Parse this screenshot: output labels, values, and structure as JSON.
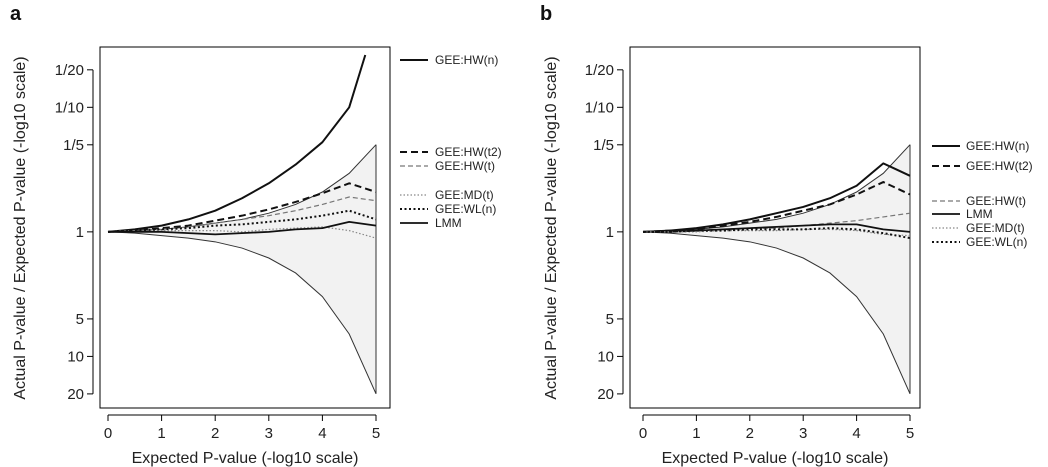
{
  "chart_data": [
    {
      "panel": "a",
      "type": "line",
      "xlabel": "Expected P-value (-log10 scale)",
      "ylabel": "Actual P-value / Expected P-value (-log10 scale)",
      "xlim": [
        0,
        5
      ],
      "ylim_log10_ratio": [
        -1.35,
        1.42
      ],
      "x_ticks": [
        0,
        1,
        2,
        3,
        4,
        5
      ],
      "y_ticks": [
        {
          "label": "1/20",
          "log10_ratio": 1.301
        },
        {
          "label": "1/10",
          "log10_ratio": 1.0
        },
        {
          "label": "1/5",
          "log10_ratio": 0.699
        },
        {
          "label": "1",
          "log10_ratio": 0
        },
        {
          "label": "5",
          "log10_ratio": -0.699
        },
        {
          "label": "10",
          "log10_ratio": -1.0
        },
        {
          "label": "20",
          "log10_ratio": -1.301
        }
      ],
      "envelope": {
        "x": [
          0,
          0.5,
          1,
          1.5,
          2,
          2.5,
          3,
          3.5,
          4,
          4.5,
          5
        ],
        "upper": [
          0,
          0.01,
          0.02,
          0.04,
          0.07,
          0.1,
          0.15,
          0.22,
          0.32,
          0.47,
          0.7
        ],
        "lower": [
          0,
          -0.01,
          -0.03,
          -0.05,
          -0.08,
          -0.13,
          -0.21,
          -0.33,
          -0.52,
          -0.82,
          -1.3
        ]
      },
      "series": [
        {
          "name": "GEE:HW(n)",
          "style": "solid-thick",
          "x": [
            0,
            0.5,
            1,
            1.5,
            2,
            2.5,
            3,
            3.5,
            4,
            4.5,
            4.8
          ],
          "values": [
            0,
            0.02,
            0.05,
            0.1,
            0.17,
            0.27,
            0.39,
            0.54,
            0.72,
            1.0,
            1.42
          ]
        },
        {
          "name": "GEE:HW(t2)",
          "style": "dashed-thick",
          "x": [
            0,
            0.5,
            1,
            1.5,
            2,
            2.5,
            3,
            3.5,
            4,
            4.5,
            5
          ],
          "values": [
            0,
            0.01,
            0.03,
            0.05,
            0.09,
            0.13,
            0.18,
            0.24,
            0.31,
            0.39,
            0.32
          ]
        },
        {
          "name": "GEE:HW(t)",
          "style": "dashed-thin",
          "x": [
            0,
            0.5,
            1,
            1.5,
            2,
            2.5,
            3,
            3.5,
            4,
            4.5,
            5
          ],
          "values": [
            0,
            0.01,
            0.02,
            0.04,
            0.07,
            0.1,
            0.13,
            0.17,
            0.22,
            0.28,
            0.25
          ]
        },
        {
          "name": "GEE:MD(t)",
          "style": "dotted-thin",
          "x": [
            0,
            0.5,
            1,
            1.5,
            2,
            2.5,
            3,
            3.5,
            4,
            4.5,
            5
          ],
          "values": [
            0,
            0.0,
            0.01,
            0.01,
            0.01,
            0.0,
            0.02,
            0.03,
            0.04,
            0.01,
            -0.05
          ]
        },
        {
          "name": "GEE:WL(n)",
          "style": "dotted-thick",
          "x": [
            0,
            0.5,
            1,
            1.5,
            2,
            2.5,
            3,
            3.5,
            4,
            4.5,
            5
          ],
          "values": [
            0,
            0.01,
            0.02,
            0.03,
            0.05,
            0.06,
            0.08,
            0.1,
            0.13,
            0.17,
            0.1
          ]
        },
        {
          "name": "LMM",
          "style": "solid-medium",
          "x": [
            0,
            0.5,
            1,
            1.5,
            2,
            2.5,
            3,
            3.5,
            4,
            4.5,
            5
          ],
          "values": [
            0,
            0.0,
            0.0,
            -0.01,
            -0.02,
            -0.01,
            0.0,
            0.02,
            0.03,
            0.08,
            0.05
          ]
        }
      ]
    },
    {
      "panel": "b",
      "type": "line",
      "xlabel": "Expected P-value (-log10 scale)",
      "ylabel": "Actual P-value / Expected P-value (-log10 scale)",
      "xlim": [
        0,
        5
      ],
      "ylim_log10_ratio": [
        -1.35,
        1.42
      ],
      "x_ticks": [
        0,
        1,
        2,
        3,
        4,
        5
      ],
      "y_ticks": [
        {
          "label": "1/20",
          "log10_ratio": 1.301
        },
        {
          "label": "1/10",
          "log10_ratio": 1.0
        },
        {
          "label": "1/5",
          "log10_ratio": 0.699
        },
        {
          "label": "1",
          "log10_ratio": 0
        },
        {
          "label": "5",
          "log10_ratio": -0.699
        },
        {
          "label": "10",
          "log10_ratio": -1.0
        },
        {
          "label": "20",
          "log10_ratio": -1.301
        }
      ],
      "envelope": {
        "x": [
          0,
          0.5,
          1,
          1.5,
          2,
          2.5,
          3,
          3.5,
          4,
          4.5,
          5
        ],
        "upper": [
          0,
          0.01,
          0.02,
          0.04,
          0.07,
          0.1,
          0.15,
          0.22,
          0.32,
          0.47,
          0.7
        ],
        "lower": [
          0,
          -0.01,
          -0.03,
          -0.05,
          -0.08,
          -0.13,
          -0.21,
          -0.33,
          -0.52,
          -0.82,
          -1.3
        ]
      },
      "series": [
        {
          "name": "GEE:HW(n)",
          "style": "solid-thick",
          "x": [
            0,
            0.5,
            1,
            1.5,
            2,
            2.5,
            3,
            3.5,
            4,
            4.5,
            5
          ],
          "values": [
            0,
            0.01,
            0.03,
            0.06,
            0.1,
            0.15,
            0.2,
            0.27,
            0.37,
            0.55,
            0.45
          ]
        },
        {
          "name": "GEE:HW(t2)",
          "style": "dashed-thick",
          "x": [
            0,
            0.5,
            1,
            1.5,
            2,
            2.5,
            3,
            3.5,
            4,
            4.5,
            5
          ],
          "values": [
            0,
            0.01,
            0.02,
            0.05,
            0.08,
            0.12,
            0.17,
            0.22,
            0.3,
            0.4,
            0.3
          ]
        },
        {
          "name": "GEE:HW(t)",
          "style": "dashed-thin",
          "x": [
            0,
            0.5,
            1,
            1.5,
            2,
            2.5,
            3,
            3.5,
            4,
            4.5,
            5
          ],
          "values": [
            0,
            0.0,
            0.01,
            0.02,
            0.03,
            0.03,
            0.05,
            0.07,
            0.09,
            0.12,
            0.15
          ]
        },
        {
          "name": "LMM",
          "style": "solid-medium",
          "x": [
            0,
            0.5,
            1,
            1.5,
            2,
            2.5,
            3,
            3.5,
            4,
            4.5,
            5
          ],
          "values": [
            0,
            0.0,
            0.01,
            0.02,
            0.03,
            0.04,
            0.05,
            0.06,
            0.06,
            0.02,
            0.0
          ]
        },
        {
          "name": "GEE:MD(t)",
          "style": "dotted-thin",
          "x": [
            0,
            0.5,
            1,
            1.5,
            2,
            2.5,
            3,
            3.5,
            4,
            4.5,
            5
          ],
          "values": [
            0,
            0.0,
            0.0,
            0.01,
            0.01,
            0.01,
            0.02,
            0.02,
            0.01,
            -0.02,
            -0.03
          ]
        },
        {
          "name": "GEE:WL(n)",
          "style": "dotted-thick",
          "x": [
            0,
            0.5,
            1,
            1.5,
            2,
            2.5,
            3,
            3.5,
            4,
            4.5,
            5
          ],
          "values": [
            0,
            0.0,
            0.01,
            0.01,
            0.02,
            0.02,
            0.02,
            0.03,
            0.02,
            -0.01,
            -0.05
          ]
        }
      ]
    }
  ]
}
